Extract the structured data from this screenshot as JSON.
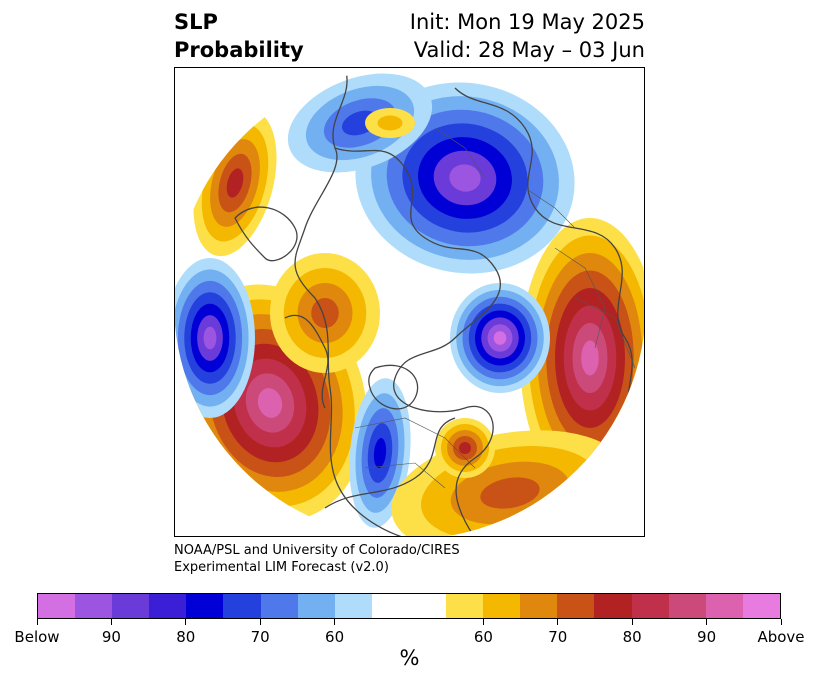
{
  "header": {
    "title_line1": "SLP",
    "title_line2": "Probability",
    "init": "Init: Mon 19 May 2025",
    "valid": "Valid: 28 May – 03 Jun"
  },
  "credit": {
    "line1": "NOAA/PSL and University of Colorado/CIRES",
    "line2": "Experimental LIM Forecast (v2.0)"
  },
  "colorbar": {
    "colors": [
      "#d46ee3",
      "#9b55e0",
      "#6a3bd9",
      "#3a1fd6",
      "#0000d6",
      "#2440dd",
      "#4f78ea",
      "#72b0f2",
      "#aedcfa",
      "#ffffff",
      "#ffffff",
      "#fde047",
      "#f4b800",
      "#e0880e",
      "#c95216",
      "#b22222",
      "#c0304a",
      "#cc4a7a",
      "#dc62b0",
      "#e77be0"
    ],
    "tick_labels": [
      "Below",
      "90",
      "80",
      "70",
      "60",
      "60",
      "70",
      "80",
      "90",
      "Above"
    ],
    "unit": "%"
  },
  "map": {
    "projection": "north-polar-stereographic",
    "field": "SLP probability",
    "palette_negative": [
      "#aedcfa",
      "#72b0f2",
      "#4f78ea",
      "#2440dd",
      "#0000d6",
      "#6a3bd9",
      "#9b55e0",
      "#d46ee3"
    ],
    "palette_positive": [
      "#fde047",
      "#f4b800",
      "#e0880e",
      "#c95216",
      "#b22222",
      "#c0304a",
      "#cc4a7a",
      "#dc62b0"
    ]
  }
}
